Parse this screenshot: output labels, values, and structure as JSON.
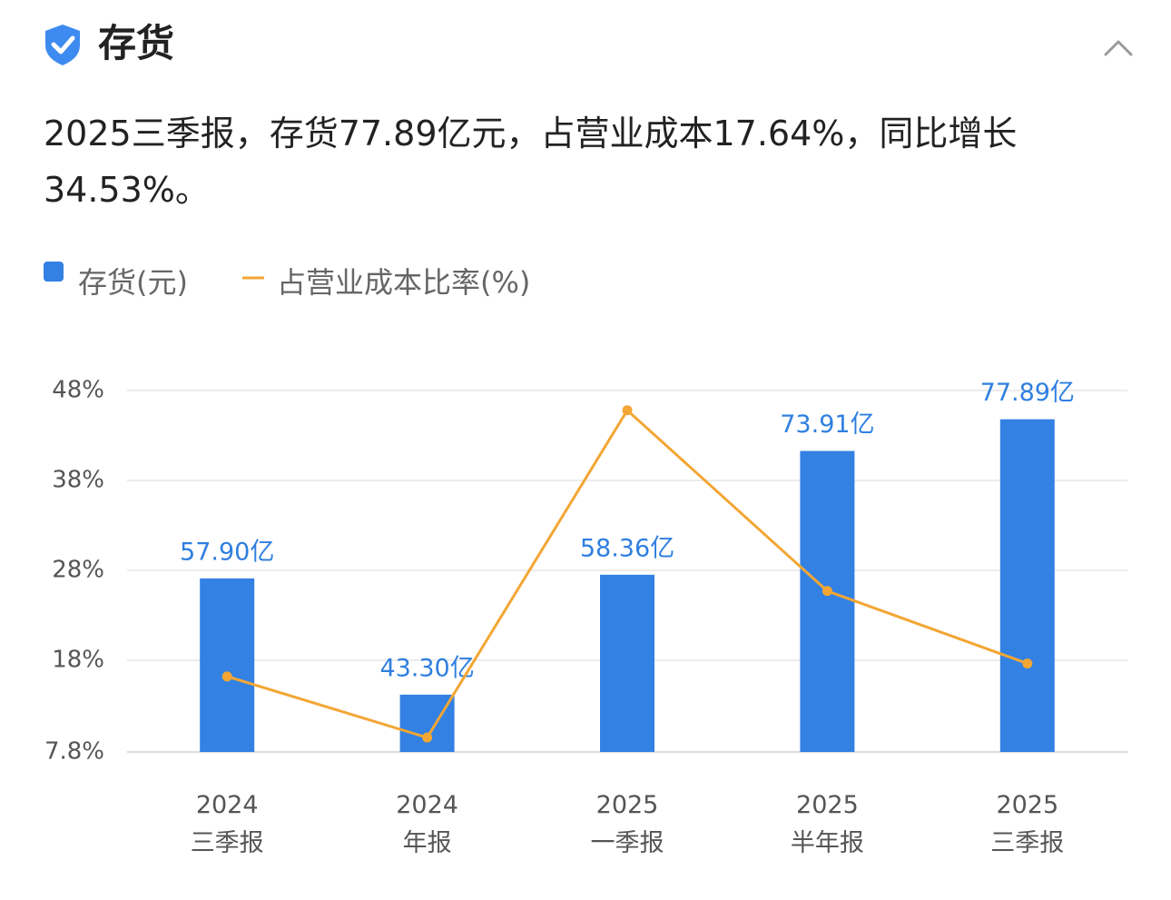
{
  "header": {
    "title": "存货"
  },
  "summary": "2025三季报，存货77.89亿元，占营业成本17.64%，同比增长34.53%。",
  "chart_data": {
    "type": "bar-line",
    "categories": [
      "2024\n三季报",
      "2024\n年报",
      "2025\n一季报",
      "2025\n半年报",
      "2025\n三季报"
    ],
    "series": [
      {
        "name": "存货(元)",
        "type": "bar",
        "color": "#3381e3",
        "axis": "y2",
        "values": [
          57.9,
          43.3,
          58.36,
          73.91,
          77.89
        ],
        "value_labels": [
          "57.90亿",
          "43.30亿",
          "58.36亿",
          "73.91亿",
          "77.89亿"
        ]
      },
      {
        "name": "占营业成本比率(%)",
        "type": "line",
        "color": "#f3a634",
        "axis": "y",
        "values": [
          16.2,
          9.4,
          45.8,
          25.7,
          17.64
        ]
      }
    ],
    "ylim": [
      7.8,
      48
    ],
    "yticks": [
      {
        "value": 48,
        "label": "48%"
      },
      {
        "value": 38,
        "label": "38%"
      },
      {
        "value": 28,
        "label": "28%"
      },
      {
        "value": 18,
        "label": "18%"
      },
      {
        "value": 7.8,
        "label": "7.8%"
      }
    ],
    "y2lim": [
      36.1,
      81.5
    ],
    "grid": true
  }
}
